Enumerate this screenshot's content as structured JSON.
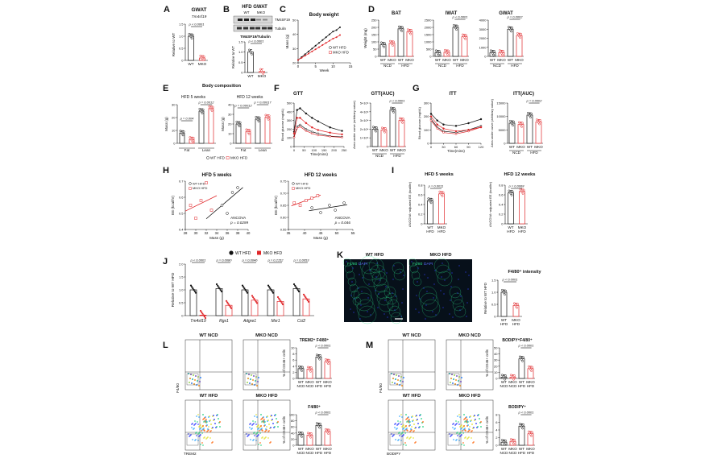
{
  "A": {
    "letter": "A",
    "title": "GWAT",
    "subtitle": "Tm4sf19",
    "ylabel": "Relative to WT",
    "pval": "p < 0.0001",
    "xt": [
      "WT",
      "MKO"
    ],
    "ticks": [
      "0",
      "0.5",
      "1.0",
      "1.5"
    ],
    "means": [
      1.0,
      0.1
    ],
    "ymax": 1.5
  },
  "B": {
    "letter": "B",
    "title": "HFD GWAT",
    "lane1": "WT",
    "lane2": "MKO",
    "band1": "TM4SF19",
    "band2": "Tubulin",
    "quant": "TM4SF19/Tubulin",
    "ylabel": "Relative to WT",
    "pval": "p < 0.0001",
    "xt": [
      "WT",
      "MKO"
    ],
    "ticks": [
      "0",
      "0.5",
      "1.0",
      "1.5"
    ],
    "means": [
      1.0,
      0.05
    ],
    "ymax": 1.5
  },
  "C": {
    "letter": "C",
    "title": "Body weight",
    "ylabel": "Mass (g)",
    "xlabel": "Week",
    "xticks": [
      "0",
      "5",
      "10",
      "15"
    ],
    "yticks": [
      "20",
      "30",
      "40",
      "50"
    ],
    "legend": [
      "WT HFD",
      "MKO HFD"
    ],
    "weeks": [
      0,
      1,
      2,
      3,
      4,
      5,
      6,
      7,
      8,
      9,
      10,
      11,
      12
    ],
    "wt": [
      22,
      24,
      26,
      28,
      30,
      32,
      34,
      36,
      38,
      40,
      42,
      43,
      45
    ],
    "mko": [
      22,
      23.5,
      25,
      26.5,
      28,
      29.5,
      31,
      32.5,
      34,
      35.5,
      37,
      38,
      39.5
    ]
  },
  "D": {
    "letter": "D",
    "panels": [
      {
        "title": "BAT",
        "ylabel": "Weight (mg)",
        "ticks": [
          "0",
          "50",
          "100",
          "150",
          "200",
          "250"
        ],
        "means": [
          80,
          90,
          190,
          170
        ],
        "ymax": 250,
        "pval": ""
      },
      {
        "title": "IWAT",
        "ylabel": "",
        "ticks": [
          "0",
          "500",
          "1000",
          "1500",
          "2000",
          "2500"
        ],
        "means": [
          250,
          280,
          2000,
          1350
        ],
        "ymax": 2500,
        "pval": "p < 0.0001"
      },
      {
        "title": "GWAT",
        "ylabel": "",
        "ticks": [
          "0",
          "1000",
          "2000",
          "3000",
          "4000"
        ],
        "means": [
          400,
          420,
          3000,
          2300
        ],
        "ymax": 4000,
        "pval": "p = 0.0002"
      }
    ],
    "xt": [
      "WT",
      "MKO",
      "WT",
      "MKO"
    ],
    "groups": [
      "NCD",
      "HFD"
    ]
  },
  "E": {
    "letter": "E",
    "title": "Body composition",
    "sub1": "HFD 5 weeks",
    "sub2": "HFD 12 weeks",
    "ylabel": "Mass (g)",
    "groups": [
      "Fat",
      "Lean"
    ],
    "legend": [
      "WT HFD",
      "MKO HFD"
    ],
    "p1": [
      "p = 0.004",
      "p = 0.0012"
    ],
    "p2": [
      "p = 0.00012",
      "p = 0.00017"
    ],
    "ticks1": [
      "0",
      "10",
      "20",
      "30"
    ],
    "ticks2": [
      "0",
      "10",
      "20",
      "30",
      "40"
    ],
    "means1": [
      8,
      3,
      25,
      27
    ],
    "max1": 30,
    "means2": [
      20,
      12,
      25,
      27
    ],
    "max2": 40
  },
  "F": {
    "letter": "F",
    "title": "GTT",
    "title2": "GTT(AUC)",
    "ylabel": "Blood glucose (mg/dL)",
    "xlabel": "Time(mins)",
    "xticks": [
      "0",
      "50",
      "100",
      "150",
      "200",
      "250"
    ],
    "yticks": [
      "0",
      "100",
      "200",
      "300",
      "400",
      "500"
    ],
    "auc_ylabel": "Area under curve (arbitrary value)",
    "auc_ticks": [
      "0",
      "1×10⁴",
      "2×10⁴",
      "3×10⁴",
      "4×10⁴",
      "5×10⁴"
    ],
    "auc_pval": "p < 0.0001",
    "xt": [
      "WT",
      "MKO",
      "WT",
      "MKO"
    ],
    "groups": [
      "NCD",
      "HFD"
    ],
    "times": [
      0,
      15,
      30,
      60,
      90,
      120,
      180,
      240
    ],
    "wtn": [
      110,
      230,
      250,
      200,
      170,
      150,
      120,
      110
    ],
    "mkon": [
      105,
      210,
      230,
      180,
      150,
      130,
      115,
      105
    ],
    "wth": [
      170,
      420,
      440,
      380,
      330,
      290,
      220,
      180
    ],
    "mkoh": [
      150,
      330,
      330,
      270,
      220,
      190,
      160,
      140
    ],
    "auc": [
      20000,
      19000,
      42000,
      30000
    ],
    "auc_max": 50000
  },
  "G": {
    "letter": "G",
    "title": "ITT",
    "title2": "ITT(AUC)",
    "ylabel": "Blood glucose (mg/dL)",
    "xlabel": "Time(mins)",
    "xticks": [
      "0",
      "30",
      "60",
      "90",
      "120"
    ],
    "yticks": [
      "0",
      "100",
      "200",
      "300"
    ],
    "auc_ylabel": "Area under curve (arbitrary value)",
    "auc_ticks": [
      "0",
      "5000",
      "10000",
      "15000"
    ],
    "auc_pval": "p = 0.0002",
    "xt": [
      "WT",
      "MKO",
      "WT",
      "MKO"
    ],
    "groups": [
      "NCD",
      "HFD"
    ],
    "times": [
      0,
      15,
      30,
      60,
      90,
      120
    ],
    "wtn": [
      180,
      120,
      90,
      80,
      100,
      130
    ],
    "mkon": [
      170,
      110,
      80,
      70,
      90,
      120
    ],
    "wth": [
      220,
      170,
      140,
      130,
      150,
      180
    ],
    "mkoh": [
      200,
      140,
      110,
      90,
      100,
      120
    ],
    "auc": [
      7500,
      7000,
      10500,
      8000
    ],
    "auc_max": 15000
  },
  "H": {
    "letter": "H",
    "p1": {
      "title": "HFD 5 weeks",
      "legend": [
        "WT HFD",
        "MKO HFD"
      ],
      "ylabel": "EE (kcal/hr)",
      "xlabel": "Mass (g)",
      "xticks": [
        "28",
        "30",
        "32",
        "34",
        "36",
        "38",
        "40"
      ],
      "yticks": [
        "0.4",
        "0.5",
        "0.6",
        "0.7"
      ],
      "xmin": 28,
      "xmax": 40,
      "ymin": 0.4,
      "ymax": 0.7,
      "stat1": "ANCOVA",
      "stat2": "p = 0.0299",
      "wt": [
        [
          33,
          0.52
        ],
        [
          35,
          0.55
        ],
        [
          36,
          0.5
        ],
        [
          37,
          0.63
        ],
        [
          38,
          0.66
        ]
      ],
      "mko": [
        [
          29,
          0.55
        ],
        [
          30,
          0.47
        ],
        [
          31,
          0.58
        ],
        [
          32,
          0.69
        ],
        [
          33,
          0.52
        ]
      ]
    },
    "p2": {
      "title": "HFD 12 weeks",
      "legend": [
        "WT HFD",
        "MKO HFD"
      ],
      "ylabel": "EE (kcal/hr)",
      "xlabel": "Mass (g)",
      "xticks": [
        "35",
        "40",
        "45",
        "50",
        "55"
      ],
      "yticks": [
        "0.55",
        "0.60",
        "0.65",
        "0.70",
        "0.75"
      ],
      "xmin": 34,
      "xmax": 56,
      "ymin": 0.55,
      "ymax": 0.75,
      "stat1": "ANCOVA",
      "stat2": "p = 0.046",
      "wt": [
        [
          42,
          0.64
        ],
        [
          45,
          0.62
        ],
        [
          48,
          0.65
        ],
        [
          50,
          0.63
        ],
        [
          53,
          0.66
        ]
      ],
      "mko": [
        [
          36,
          0.66
        ],
        [
          38,
          0.65
        ],
        [
          40,
          0.67
        ],
        [
          42,
          0.68
        ],
        [
          44,
          0.69
        ]
      ]
    }
  },
  "I": {
    "letter": "I",
    "p1": {
      "title": "HFD 5 weeks",
      "ylabel": "ANCOVA−adjusted EE (kcal/hr)",
      "ticks": [
        "0",
        "0.2",
        "0.4",
        "0.6",
        "0.8"
      ],
      "means": [
        0.48,
        0.62
      ],
      "ymax": 0.8,
      "pval": "p = 0.0011"
    },
    "p2": {
      "title": "HFD 12 weeks",
      "ylabel": "ANCOVA−adjusted EE (kcal/hr)",
      "ticks": [
        "0",
        "0.2",
        "0.4",
        "0.6",
        "0.8"
      ],
      "means": [
        0.64,
        0.67
      ],
      "ymax": 0.8,
      "pval": "p = 0.0068"
    },
    "xt": [
      "WT",
      "MKO"
    ],
    "xt2": [
      "HFD",
      "HFD"
    ]
  },
  "J": {
    "letter": "J",
    "legend": [
      "WT HFD",
      "MKO HFD"
    ],
    "ylabel": "Relative to WT HFD",
    "ticks": [
      "0",
      "0.5",
      "1.0",
      "1.5",
      "2.0"
    ],
    "ymax": 2.0,
    "genes": [
      "Tm4sf19",
      "Rgs1",
      "Adgre1",
      "Msr1",
      "Ccl2"
    ],
    "pvals": [
      "p < 0.0001",
      "p = 0.0080",
      "p = 0.0046",
      "p = 0.2152",
      "p = 0.0053"
    ],
    "wt": [
      1.0,
      1.05,
      1.0,
      1.0,
      1.05
    ],
    "mko": [
      0.02,
      0.4,
      0.6,
      0.55,
      0.65
    ]
  },
  "K": {
    "letter": "K",
    "img1": "WT HFD",
    "img2": "MKO HFD",
    "stain1": "F4/80",
    "stain2": "DAPI",
    "title": "F4/80⁺ intensity",
    "ylabel": "Relative to WT HFD",
    "ticks": [
      "0",
      "0.5",
      "1.0",
      "1.5"
    ],
    "ymax": 1.5,
    "means": [
      1.0,
      0.45
    ],
    "pval": "p < 0.0001",
    "xt": [
      "WT",
      "MKO"
    ],
    "xt2": [
      "HFD",
      "HFD"
    ]
  },
  "L": {
    "letter": "L",
    "cols": [
      "WT NCD",
      "MKO NCD"
    ],
    "cols2": [
      "WT HFD",
      "MKO HFD"
    ],
    "yaxis": "F4/80",
    "xaxis": "TREM2",
    "t1": "TREM2⁺ F4/80⁺",
    "t2": "F4/80⁺",
    "ylabel": "% of CD45+ cells",
    "ticks1": [
      "0",
      "2",
      "4",
      "6",
      "8",
      "10"
    ],
    "ticks2": [
      "0",
      "20",
      "40",
      "60",
      "80",
      "100"
    ],
    "m1": [
      3.2,
      3.0,
      7.0,
      5.5
    ],
    "max1": 10,
    "m2": [
      35,
      33,
      65,
      45
    ],
    "max2": 100,
    "p1": "p < 0.0001",
    "p2": "p < 0.0001",
    "xt": [
      "WT",
      "MKO",
      "WT",
      "MKO"
    ],
    "xt2": [
      "NCD",
      "NCD",
      "HFD",
      "HFD"
    ]
  },
  "M": {
    "letter": "M",
    "cols": [
      "WT NCD",
      "MKO NCD"
    ],
    "cols2": [
      "WT HFD",
      "MKO HFD"
    ],
    "yaxis": "F4/80",
    "xaxis": "BODIPY",
    "t1": "BODIPY⁺F4/80⁺",
    "t2": "BODIPY⁺",
    "ylabel": "% of CD45+ cells",
    "ticks1": [
      "0",
      "10",
      "20",
      "30",
      "40",
      "50"
    ],
    "ticks2": [
      "0",
      "2",
      "4",
      "6",
      "8"
    ],
    "m1": [
      2,
      2,
      32,
      16
    ],
    "max1": 50,
    "m2": [
      0.8,
      1.0,
      5.0,
      3.0
    ],
    "max2": 8,
    "p1": "p < 0.0001",
    "p2": "p < 0.0001",
    "xt": [
      "WT",
      "MKO",
      "WT",
      "MKO"
    ],
    "xt2": [
      "NCD",
      "NCD",
      "HFD",
      "HFD"
    ]
  },
  "colors": {
    "wt": "#111111",
    "mko": "#e0272a",
    "scale": "#ffffff",
    "imgbg": "#07101a",
    "green": "#2ee08a"
  }
}
